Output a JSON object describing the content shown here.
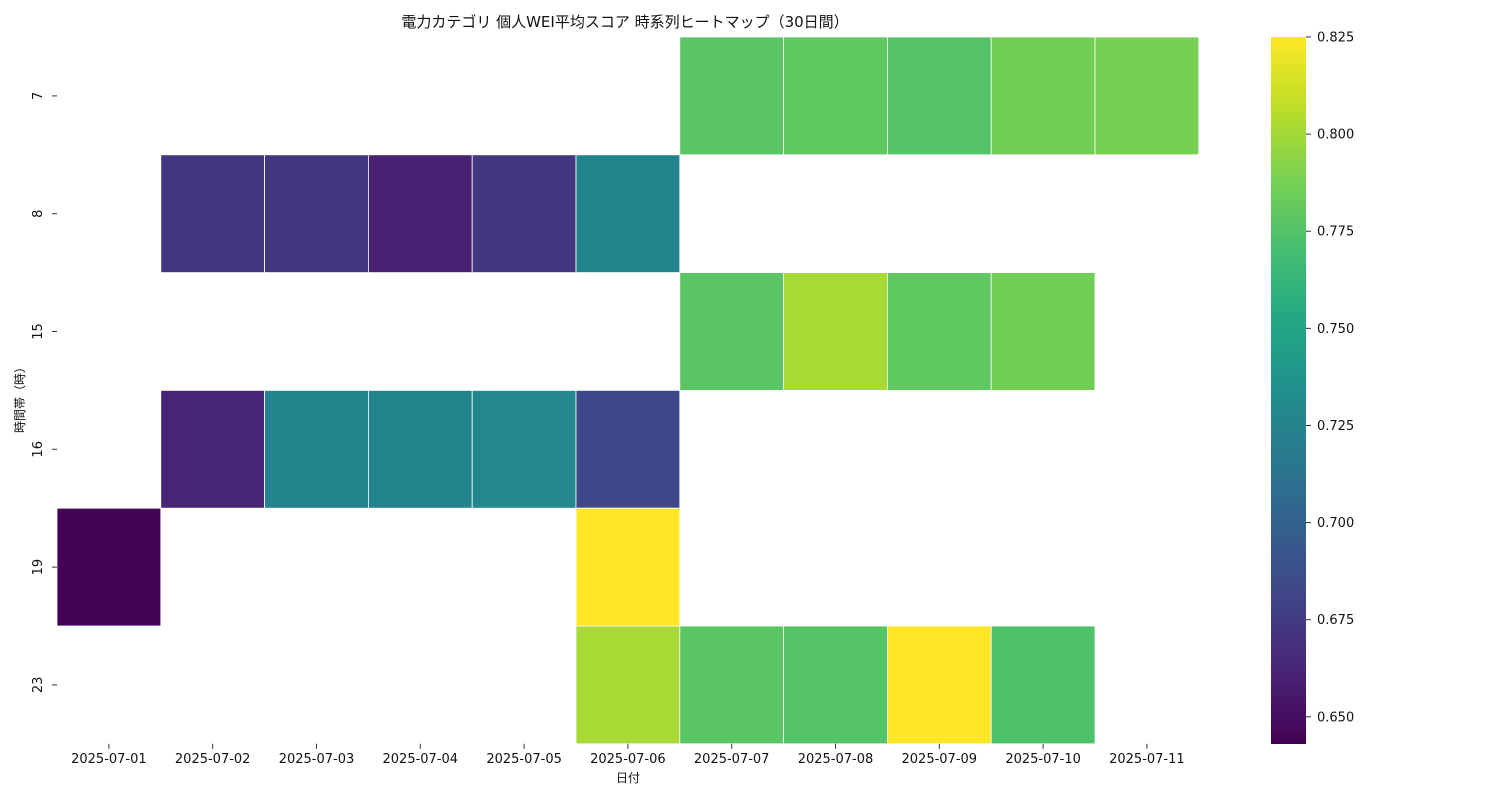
{
  "chart_data": {
    "type": "heatmap",
    "title": "電力カテゴリ 個人WEI平均スコア 時系列ヒートマップ（30日間）",
    "xlabel": "日付",
    "ylabel": "時間帯（時）",
    "x_categories": [
      "2025-07-01",
      "2025-07-02",
      "2025-07-03",
      "2025-07-04",
      "2025-07-05",
      "2025-07-06",
      "2025-07-07",
      "2025-07-08",
      "2025-07-09",
      "2025-07-10",
      "2025-07-11"
    ],
    "y_categories": [
      "7",
      "8",
      "15",
      "16",
      "19",
      "23"
    ],
    "values": [
      [
        null,
        null,
        null,
        null,
        null,
        null,
        0.778,
        0.78,
        0.776,
        0.786,
        0.788
      ],
      [
        null,
        0.673,
        0.673,
        0.66,
        0.673,
        0.725,
        null,
        null,
        null,
        null,
        null
      ],
      [
        null,
        null,
        null,
        null,
        null,
        null,
        0.778,
        0.801,
        0.78,
        0.786,
        null
      ],
      [
        null,
        0.662,
        0.725,
        0.725,
        0.727,
        0.683,
        null,
        null,
        null,
        null,
        null
      ],
      [
        0.644,
        null,
        null,
        null,
        null,
        0.825,
        null,
        null,
        null,
        null,
        null
      ],
      [
        null,
        null,
        null,
        null,
        null,
        0.801,
        0.778,
        0.776,
        0.825,
        0.774,
        null
      ]
    ],
    "colormap": "viridis",
    "vmin": 0.643,
    "vmax": 0.825,
    "colorbar_ticks": [
      0.65,
      0.675,
      0.7,
      0.725,
      0.75,
      0.775,
      0.8,
      0.825
    ],
    "colorbar_tick_labels": [
      "0.650",
      "0.675",
      "0.700",
      "0.725",
      "0.750",
      "0.775",
      "0.800",
      "0.825"
    ],
    "grid_line_color": "#ffffff"
  }
}
